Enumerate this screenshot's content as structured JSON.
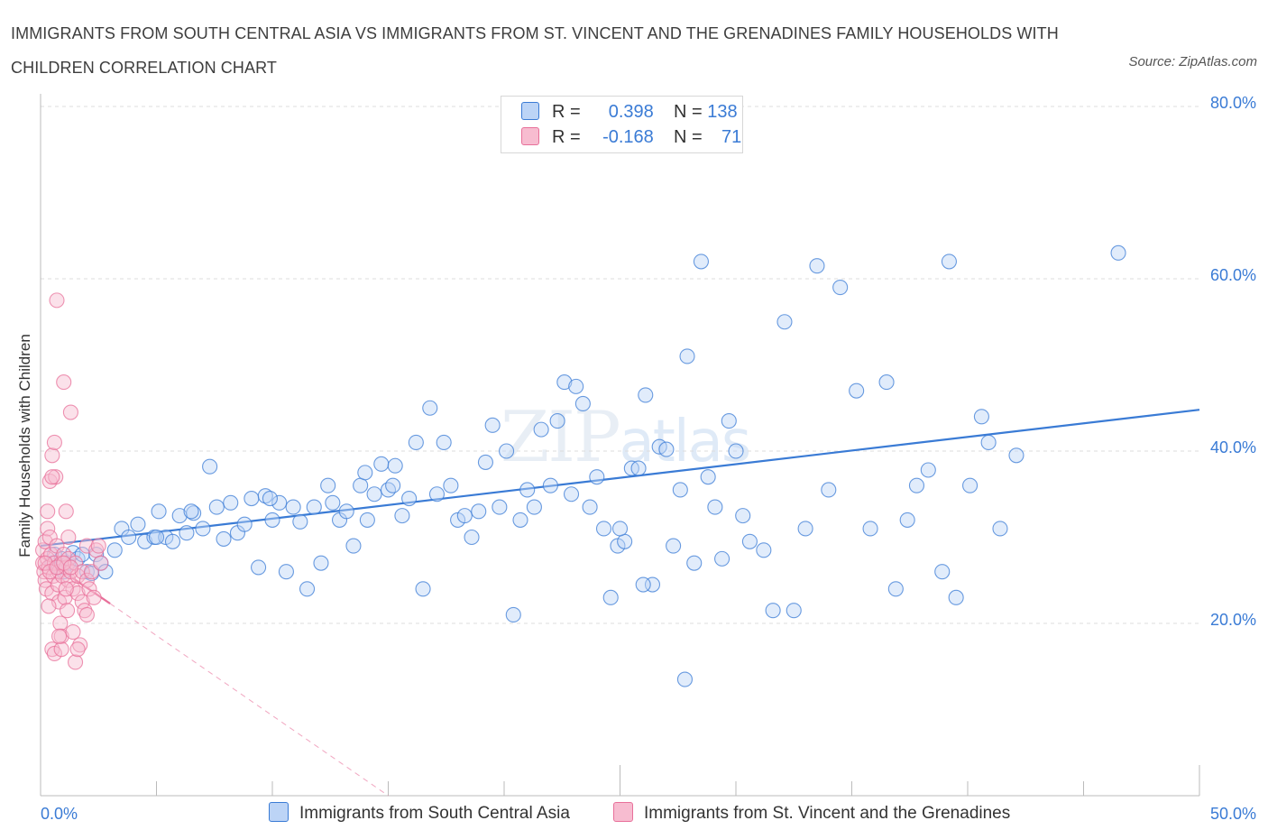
{
  "title": "IMMIGRANTS FROM SOUTH CENTRAL ASIA VS IMMIGRANTS FROM ST. VINCENT AND THE GRENADINES FAMILY HOUSEHOLDS WITH CHILDREN CORRELATION CHART",
  "source": "Source: ZipAtlas.com",
  "watermark": {
    "zip": "ZIP",
    "atlas": "atlas"
  },
  "colors": {
    "blue": "#3a7bd5",
    "blue_fill": "#bcd4f6",
    "pink": "#e8709a",
    "pink_fill": "#f7bcd0"
  },
  "legend": {
    "rows": [
      {
        "r_label": "R =",
        "r_value": "0.398",
        "n_label": "N =",
        "n_value": "138"
      },
      {
        "r_label": "R =",
        "r_value": "-0.168",
        "n_label": "N =",
        "n_value": "71"
      }
    ]
  },
  "chart_data": {
    "type": "scatter",
    "title": "",
    "xlabel": "",
    "ylabel": "Family Households with Children",
    "xlim": [
      0,
      50
    ],
    "ylim": [
      0,
      80
    ],
    "x_tick_labels": [
      "0.0%",
      "50.0%"
    ],
    "y_ticks": [
      20,
      40,
      60,
      80
    ],
    "y_tick_labels": [
      "20.0%",
      "40.0%",
      "60.0%",
      "80.0%"
    ],
    "grid": true,
    "series": [
      {
        "name": "Immigrants from South Central Asia",
        "color": "#3a7bd5",
        "trend": {
          "x": [
            0,
            50
          ],
          "y": [
            29.0,
            44.8
          ]
        },
        "points": [
          [
            0.5,
            27.0
          ],
          [
            0.6,
            28.0
          ],
          [
            0.8,
            26.5
          ],
          [
            0.9,
            27.5
          ],
          [
            1.0,
            26.0
          ],
          [
            1.2,
            27.0
          ],
          [
            1.4,
            28.2
          ],
          [
            1.6,
            27.5
          ],
          [
            1.8,
            28.0
          ],
          [
            2.0,
            26.0
          ],
          [
            2.2,
            25.8
          ],
          [
            2.4,
            28.0
          ],
          [
            2.6,
            27.0
          ],
          [
            2.8,
            26.0
          ],
          [
            3.2,
            28.5
          ],
          [
            3.5,
            31.0
          ],
          [
            3.8,
            30.0
          ],
          [
            4.2,
            31.5
          ],
          [
            4.5,
            29.5
          ],
          [
            4.9,
            30.0
          ],
          [
            5.1,
            33.0
          ],
          [
            5.4,
            30.0
          ],
          [
            5.7,
            29.5
          ],
          [
            6.0,
            32.5
          ],
          [
            6.3,
            30.5
          ],
          [
            6.6,
            32.8
          ],
          [
            7.0,
            31.0
          ],
          [
            7.3,
            38.2
          ],
          [
            7.6,
            33.5
          ],
          [
            7.9,
            29.8
          ],
          [
            8.2,
            34.0
          ],
          [
            8.5,
            30.5
          ],
          [
            8.8,
            31.5
          ],
          [
            9.1,
            34.5
          ],
          [
            9.4,
            26.5
          ],
          [
            9.7,
            34.8
          ],
          [
            10.0,
            32.0
          ],
          [
            10.3,
            34.0
          ],
          [
            10.6,
            26.0
          ],
          [
            10.9,
            33.5
          ],
          [
            11.2,
            31.8
          ],
          [
            11.5,
            24.0
          ],
          [
            11.8,
            33.5
          ],
          [
            12.1,
            27.0
          ],
          [
            12.4,
            36.0
          ],
          [
            12.6,
            34.0
          ],
          [
            12.9,
            32.0
          ],
          [
            13.2,
            33.0
          ],
          [
            13.5,
            29.0
          ],
          [
            13.8,
            36.0
          ],
          [
            14.1,
            32.0
          ],
          [
            14.4,
            35.0
          ],
          [
            14.7,
            38.5
          ],
          [
            15.0,
            35.5
          ],
          [
            15.3,
            38.3
          ],
          [
            15.6,
            32.5
          ],
          [
            15.9,
            34.5
          ],
          [
            16.2,
            41.0
          ],
          [
            16.5,
            24.0
          ],
          [
            16.8,
            45.0
          ],
          [
            17.1,
            35.0
          ],
          [
            17.4,
            41.0
          ],
          [
            17.7,
            36.0
          ],
          [
            18.0,
            32.0
          ],
          [
            18.3,
            32.5
          ],
          [
            18.6,
            30.0
          ],
          [
            18.9,
            33.0
          ],
          [
            19.2,
            38.7
          ],
          [
            19.5,
            43.0
          ],
          [
            19.8,
            33.5
          ],
          [
            20.1,
            40.0
          ],
          [
            20.4,
            21.0
          ],
          [
            20.7,
            32.0
          ],
          [
            21.0,
            35.5
          ],
          [
            21.3,
            33.5
          ],
          [
            21.6,
            42.5
          ],
          [
            22.0,
            36.0
          ],
          [
            22.3,
            43.5
          ],
          [
            22.6,
            48.0
          ],
          [
            22.9,
            35.0
          ],
          [
            23.1,
            47.5
          ],
          [
            23.4,
            45.5
          ],
          [
            23.7,
            33.5
          ],
          [
            24.0,
            37.0
          ],
          [
            24.3,
            31.0
          ],
          [
            24.6,
            23.0
          ],
          [
            24.9,
            29.0
          ],
          [
            25.2,
            29.5
          ],
          [
            25.5,
            38.0
          ],
          [
            25.8,
            38.0
          ],
          [
            26.1,
            46.5
          ],
          [
            26.4,
            24.5
          ],
          [
            26.7,
            40.5
          ],
          [
            27.0,
            40.2
          ],
          [
            27.3,
            29.0
          ],
          [
            27.6,
            35.5
          ],
          [
            27.9,
            51.0
          ],
          [
            28.2,
            27.0
          ],
          [
            28.5,
            62.0
          ],
          [
            28.8,
            37.0
          ],
          [
            29.1,
            33.5
          ],
          [
            29.4,
            27.5
          ],
          [
            29.7,
            43.5
          ],
          [
            30.0,
            40.0
          ],
          [
            30.3,
            32.5
          ],
          [
            30.6,
            29.5
          ],
          [
            31.2,
            28.5
          ],
          [
            31.6,
            21.5
          ],
          [
            32.1,
            55.0
          ],
          [
            32.5,
            21.5
          ],
          [
            33.0,
            31.0
          ],
          [
            33.5,
            61.5
          ],
          [
            34.0,
            35.5
          ],
          [
            34.5,
            59.0
          ],
          [
            35.2,
            47.0
          ],
          [
            35.8,
            31.0
          ],
          [
            36.5,
            48.0
          ],
          [
            36.9,
            24.0
          ],
          [
            37.4,
            32.0
          ],
          [
            37.8,
            36.0
          ],
          [
            38.3,
            37.8
          ],
          [
            38.9,
            26.0
          ],
          [
            39.2,
            62.0
          ],
          [
            39.5,
            23.0
          ],
          [
            40.1,
            36.0
          ],
          [
            40.6,
            44.0
          ],
          [
            40.9,
            41.0
          ],
          [
            41.4,
            31.0
          ],
          [
            42.1,
            39.5
          ],
          [
            46.5,
            63.0
          ],
          [
            25.0,
            31.0
          ],
          [
            26.0,
            24.5
          ],
          [
            27.8,
            13.5
          ],
          [
            15.2,
            36.0
          ],
          [
            14.0,
            37.5
          ],
          [
            9.9,
            34.5
          ],
          [
            6.5,
            33.0
          ],
          [
            5.0,
            30.0
          ]
        ]
      },
      {
        "name": "Immigrants from St. Vincent and the Grenadines",
        "color": "#e8709a",
        "trend": {
          "x": [
            0,
            3.0
          ],
          "y": [
            27.8,
            22.3
          ]
        },
        "trend_extension": {
          "x": [
            3.0,
            15.0
          ],
          "y": [
            22.3,
            0.0
          ]
        },
        "points": [
          [
            0.1,
            28.5
          ],
          [
            0.1,
            27.0
          ],
          [
            0.15,
            26.0
          ],
          [
            0.2,
            25.0
          ],
          [
            0.2,
            29.5
          ],
          [
            0.25,
            24.0
          ],
          [
            0.3,
            27.5
          ],
          [
            0.3,
            31.0
          ],
          [
            0.35,
            26.5
          ],
          [
            0.4,
            36.5
          ],
          [
            0.4,
            30.0
          ],
          [
            0.45,
            28.0
          ],
          [
            0.5,
            23.5
          ],
          [
            0.5,
            39.5
          ],
          [
            0.55,
            25.5
          ],
          [
            0.6,
            27.0
          ],
          [
            0.6,
            41.0
          ],
          [
            0.65,
            37.0
          ],
          [
            0.7,
            29.0
          ],
          [
            0.7,
            57.5
          ],
          [
            0.75,
            24.5
          ],
          [
            0.8,
            26.0
          ],
          [
            0.8,
            22.5
          ],
          [
            0.85,
            20.0
          ],
          [
            0.9,
            27.0
          ],
          [
            0.9,
            18.5
          ],
          [
            0.95,
            25.5
          ],
          [
            1.0,
            28.0
          ],
          [
            1.0,
            48.0
          ],
          [
            1.05,
            23.0
          ],
          [
            1.1,
            26.5
          ],
          [
            1.1,
            33.0
          ],
          [
            1.15,
            21.5
          ],
          [
            1.2,
            27.5
          ],
          [
            1.2,
            25.0
          ],
          [
            1.3,
            44.5
          ],
          [
            1.3,
            26.0
          ],
          [
            1.4,
            24.0
          ],
          [
            1.4,
            19.0
          ],
          [
            1.5,
            27.0
          ],
          [
            1.5,
            15.5
          ],
          [
            1.6,
            23.5
          ],
          [
            1.6,
            25.5
          ],
          [
            1.7,
            17.5
          ],
          [
            1.8,
            22.5
          ],
          [
            1.8,
            26.0
          ],
          [
            1.9,
            21.5
          ],
          [
            2.0,
            25.0
          ],
          [
            2.0,
            29.0
          ],
          [
            2.1,
            24.0
          ],
          [
            2.2,
            26.0
          ],
          [
            2.3,
            23.0
          ],
          [
            2.4,
            28.5
          ],
          [
            2.5,
            29.0
          ],
          [
            2.6,
            27.0
          ],
          [
            0.3,
            33.0
          ],
          [
            0.5,
            17.0
          ],
          [
            0.6,
            16.5
          ],
          [
            0.9,
            17.0
          ],
          [
            1.2,
            30.0
          ],
          [
            0.2,
            27.0
          ],
          [
            0.4,
            26.0
          ],
          [
            0.7,
            26.5
          ],
          [
            1.0,
            27.0
          ],
          [
            1.6,
            17.0
          ],
          [
            0.35,
            22.0
          ],
          [
            0.5,
            37.0
          ],
          [
            1.3,
            26.5
          ],
          [
            2.0,
            21.0
          ],
          [
            0.8,
            18.5
          ],
          [
            1.1,
            24.0
          ]
        ]
      }
    ]
  }
}
